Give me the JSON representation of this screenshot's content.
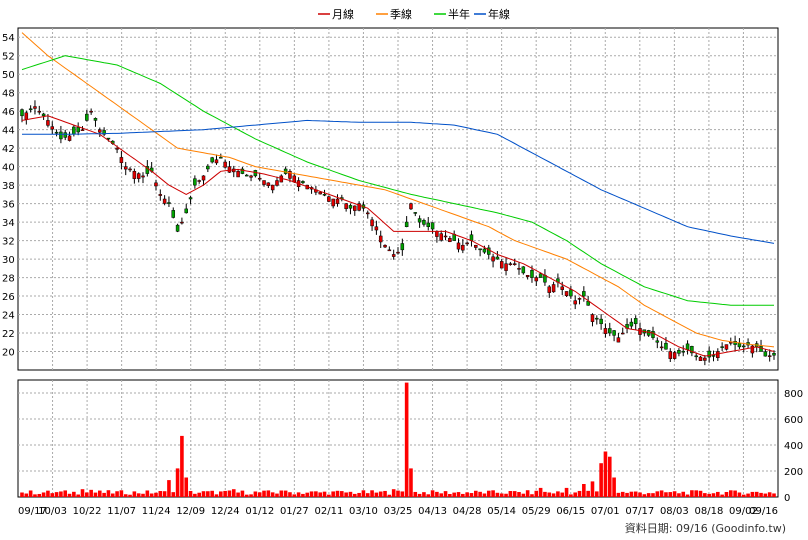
{
  "legend": [
    {
      "name": "月線",
      "color": "#cc0000"
    },
    {
      "name": "季線",
      "color": "#ff8000"
    },
    {
      "name": "半年",
      "color": "#00cc00"
    },
    {
      "name": "年線",
      "color": "#0050c8"
    }
  ],
  "footer": "資料日期: 09/16  (Goodinfo.tw)",
  "colors": {
    "up": "#e00000",
    "down": "#00a000",
    "volume": "#ff0000",
    "grid": "#aaaaaa"
  },
  "chart_data": [
    {
      "type": "candlestick",
      "title": "",
      "ylim": [
        18,
        55
      ],
      "y_ticks": [
        20,
        22,
        24,
        26,
        28,
        30,
        32,
        34,
        36,
        38,
        40,
        42,
        44,
        46,
        48,
        50,
        52,
        54
      ],
      "grid": true,
      "legend_position": "top-center",
      "x_tick_labels": [
        "09/17",
        "10/03",
        "10/22",
        "11/07",
        "11/24",
        "12/09",
        "12/24",
        "01/12",
        "01/27",
        "02/11",
        "03/10",
        "03/25",
        "04/13",
        "04/28",
        "05/14",
        "05/29",
        "06/15",
        "07/01",
        "07/17",
        "08/03",
        "08/18",
        "09/02",
        "09/16"
      ],
      "close_path": [
        [
          0,
          45.5
        ],
        [
          3,
          46.5
        ],
        [
          6,
          45
        ],
        [
          9,
          43
        ],
        [
          12,
          43.5
        ],
        [
          14,
          44
        ],
        [
          16,
          46
        ],
        [
          18,
          44
        ],
        [
          20,
          43
        ],
        [
          22,
          42
        ],
        [
          24,
          40
        ],
        [
          26,
          39.5
        ],
        [
          28,
          39
        ],
        [
          30,
          39.5
        ],
        [
          32,
          37
        ],
        [
          34,
          36
        ],
        [
          36,
          33
        ],
        [
          38,
          35
        ],
        [
          40,
          38
        ],
        [
          42,
          39
        ],
        [
          44,
          40.5
        ],
        [
          46,
          41
        ],
        [
          48,
          40
        ],
        [
          50,
          39.5
        ],
        [
          52,
          39
        ],
        [
          54,
          39
        ],
        [
          56,
          38.5
        ],
        [
          58,
          38
        ],
        [
          60,
          39
        ],
        [
          62,
          39.5
        ],
        [
          64,
          38.5
        ],
        [
          66,
          38
        ],
        [
          68,
          37.5
        ],
        [
          70,
          37
        ],
        [
          72,
          36.5
        ],
        [
          74,
          36.5
        ],
        [
          76,
          35.5
        ],
        [
          78,
          36
        ],
        [
          80,
          35
        ],
        [
          82,
          33.5
        ],
        [
          84,
          31.5
        ],
        [
          86,
          30.5
        ],
        [
          88,
          31
        ],
        [
          90,
          36
        ],
        [
          92,
          34
        ],
        [
          94,
          33.5
        ],
        [
          96,
          33
        ],
        [
          98,
          32.5
        ],
        [
          100,
          32
        ],
        [
          102,
          31.5
        ],
        [
          104,
          32
        ],
        [
          106,
          31
        ],
        [
          108,
          30.5
        ],
        [
          110,
          30
        ],
        [
          112,
          29.5
        ],
        [
          114,
          29.5
        ],
        [
          116,
          28.5
        ],
        [
          118,
          28
        ],
        [
          120,
          28
        ],
        [
          122,
          27
        ],
        [
          124,
          27.5
        ],
        [
          126,
          26.5
        ],
        [
          128,
          25.5
        ],
        [
          130,
          26
        ],
        [
          132,
          24
        ],
        [
          134,
          23
        ],
        [
          136,
          22
        ],
        [
          138,
          21.5
        ],
        [
          140,
          22.5
        ],
        [
          142,
          23
        ],
        [
          144,
          22
        ],
        [
          146,
          21.5
        ],
        [
          148,
          20.5
        ],
        [
          150,
          20
        ],
        [
          152,
          19.8
        ],
        [
          154,
          20.2
        ],
        [
          156,
          19.5
        ],
        [
          158,
          19.3
        ],
        [
          160,
          19.5
        ],
        [
          162,
          20.5
        ],
        [
          164,
          21
        ],
        [
          166,
          20.5
        ],
        [
          168,
          20.7
        ],
        [
          170,
          20.5
        ],
        [
          172,
          19.5
        ],
        [
          174,
          19.6
        ]
      ],
      "ma_month_path": [
        [
          0,
          45
        ],
        [
          6,
          45.5
        ],
        [
          12,
          44.5
        ],
        [
          18,
          43.5
        ],
        [
          24,
          41.5
        ],
        [
          30,
          39.5
        ],
        [
          34,
          38
        ],
        [
          38,
          37
        ],
        [
          42,
          38
        ],
        [
          46,
          39.5
        ],
        [
          50,
          39.7
        ],
        [
          56,
          39.2
        ],
        [
          62,
          38.5
        ],
        [
          68,
          37.5
        ],
        [
          74,
          36.5
        ],
        [
          80,
          35.5
        ],
        [
          86,
          33
        ],
        [
          92,
          33
        ],
        [
          98,
          33
        ],
        [
          104,
          32
        ],
        [
          110,
          30.5
        ],
        [
          116,
          29.5
        ],
        [
          122,
          28
        ],
        [
          128,
          26.5
        ],
        [
          134,
          24.5
        ],
        [
          140,
          22.5
        ],
        [
          146,
          22
        ],
        [
          152,
          20.5
        ],
        [
          158,
          19.5
        ],
        [
          164,
          20
        ],
        [
          170,
          20.5
        ],
        [
          174,
          20
        ]
      ],
      "ma_quarter_path": [
        [
          0,
          54.5
        ],
        [
          6,
          52
        ],
        [
          12,
          50
        ],
        [
          18,
          48
        ],
        [
          24,
          46
        ],
        [
          30,
          44
        ],
        [
          36,
          42
        ],
        [
          42,
          41.5
        ],
        [
          48,
          41
        ],
        [
          54,
          40
        ],
        [
          60,
          39.5
        ],
        [
          66,
          39
        ],
        [
          72,
          38.5
        ],
        [
          78,
          38
        ],
        [
          84,
          37.5
        ],
        [
          90,
          36.5
        ],
        [
          96,
          35.5
        ],
        [
          102,
          34.5
        ],
        [
          108,
          33.5
        ],
        [
          114,
          32
        ],
        [
          120,
          31
        ],
        [
          126,
          30
        ],
        [
          132,
          28.5
        ],
        [
          138,
          27
        ],
        [
          144,
          25
        ],
        [
          150,
          23.5
        ],
        [
          156,
          22
        ],
        [
          162,
          21.2
        ],
        [
          168,
          20.8
        ],
        [
          174,
          20.5
        ]
      ],
      "ma_half_path": [
        [
          0,
          50.5
        ],
        [
          10,
          52
        ],
        [
          22,
          51
        ],
        [
          32,
          49
        ],
        [
          42,
          46
        ],
        [
          54,
          43
        ],
        [
          66,
          40.5
        ],
        [
          78,
          38.5
        ],
        [
          90,
          37
        ],
        [
          100,
          36
        ],
        [
          110,
          35
        ],
        [
          118,
          34
        ],
        [
          126,
          32
        ],
        [
          134,
          29.5
        ],
        [
          144,
          27
        ],
        [
          154,
          25.5
        ],
        [
          164,
          25
        ],
        [
          174,
          25
        ]
      ],
      "ma_year_path": [
        [
          0,
          43.5
        ],
        [
          10,
          43.5
        ],
        [
          22,
          43.6
        ],
        [
          32,
          43.8
        ],
        [
          42,
          44
        ],
        [
          54,
          44.5
        ],
        [
          66,
          45
        ],
        [
          78,
          44.8
        ],
        [
          90,
          44.8
        ],
        [
          100,
          44.5
        ],
        [
          110,
          43.5
        ],
        [
          118,
          41.5
        ],
        [
          126,
          39.5
        ],
        [
          134,
          37.5
        ],
        [
          144,
          35.5
        ],
        [
          154,
          33.5
        ],
        [
          164,
          32.5
        ],
        [
          174,
          31.7
        ]
      ]
    },
    {
      "type": "bar",
      "title": "",
      "ylim": [
        0,
        900
      ],
      "y_ticks": [
        0,
        200,
        400,
        600,
        800
      ],
      "volume_spikes": [
        [
          14,
          60
        ],
        [
          16,
          55
        ],
        [
          34,
          130
        ],
        [
          36,
          220
        ],
        [
          37,
          470
        ],
        [
          38,
          150
        ],
        [
          49,
          60
        ],
        [
          60,
          50
        ],
        [
          86,
          60
        ],
        [
          89,
          880
        ],
        [
          90,
          220
        ],
        [
          120,
          70
        ],
        [
          126,
          70
        ],
        [
          130,
          100
        ],
        [
          132,
          120
        ],
        [
          134,
          260
        ],
        [
          135,
          350
        ],
        [
          136,
          310
        ],
        [
          137,
          150
        ]
      ],
      "volume_base": 35
    }
  ]
}
